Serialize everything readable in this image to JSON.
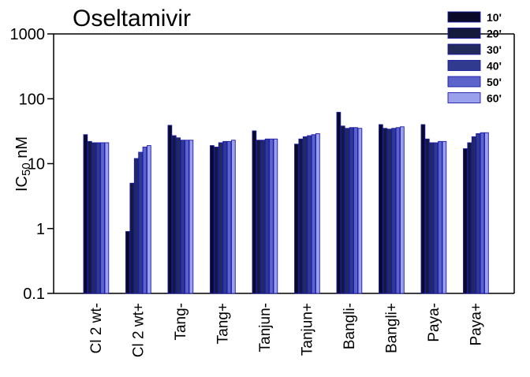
{
  "chart_data": {
    "type": "bar",
    "title": "Oseltamivir",
    "ylabel_main": "IC",
    "ylabel_sub": "50",
    "ylabel_unit": " nM",
    "yscale": "log",
    "ylim": [
      0.1,
      1000
    ],
    "yticks": [
      {
        "value": 0.1,
        "label": "0.1"
      },
      {
        "value": 1,
        "label": "1"
      },
      {
        "value": 10,
        "label": "10"
      },
      {
        "value": 100,
        "label": "100"
      },
      {
        "value": 1000,
        "label": "1000"
      }
    ],
    "grid": false,
    "legend_position": "top-right",
    "categories": [
      "Cl 2 wt-",
      "Cl 2 wt+",
      "Tang-",
      "Tang+",
      "Tanjun-",
      "Tanjun+",
      "Bangli-",
      "Bangli+",
      "Paya-",
      "Paya+"
    ],
    "series": [
      {
        "name": "10'",
        "color": "#0a0a28",
        "values": [
          28,
          0.9,
          39,
          19,
          32,
          20,
          62,
          40,
          40,
          17
        ]
      },
      {
        "name": "20'",
        "color": "#141a3c",
        "values": [
          22,
          5,
          27,
          18,
          23,
          24,
          38,
          35,
          24,
          21
        ]
      },
      {
        "name": "30'",
        "color": "#232a5c",
        "values": [
          21,
          12,
          25,
          21,
          23,
          26,
          35,
          34,
          21,
          26
        ]
      },
      {
        "name": "40'",
        "color": "#303a8e",
        "values": [
          21,
          15,
          23,
          22,
          24,
          27,
          36,
          35,
          21,
          29
        ]
      },
      {
        "name": "50'",
        "color": "#5c64cc",
        "values": [
          21,
          18,
          23,
          22,
          24,
          28,
          36,
          36,
          22,
          30
        ]
      },
      {
        "name": "60'",
        "color": "#9aa0ec",
        "values": [
          21,
          19,
          23,
          23,
          24,
          29,
          35,
          37,
          22,
          30
        ]
      }
    ]
  }
}
